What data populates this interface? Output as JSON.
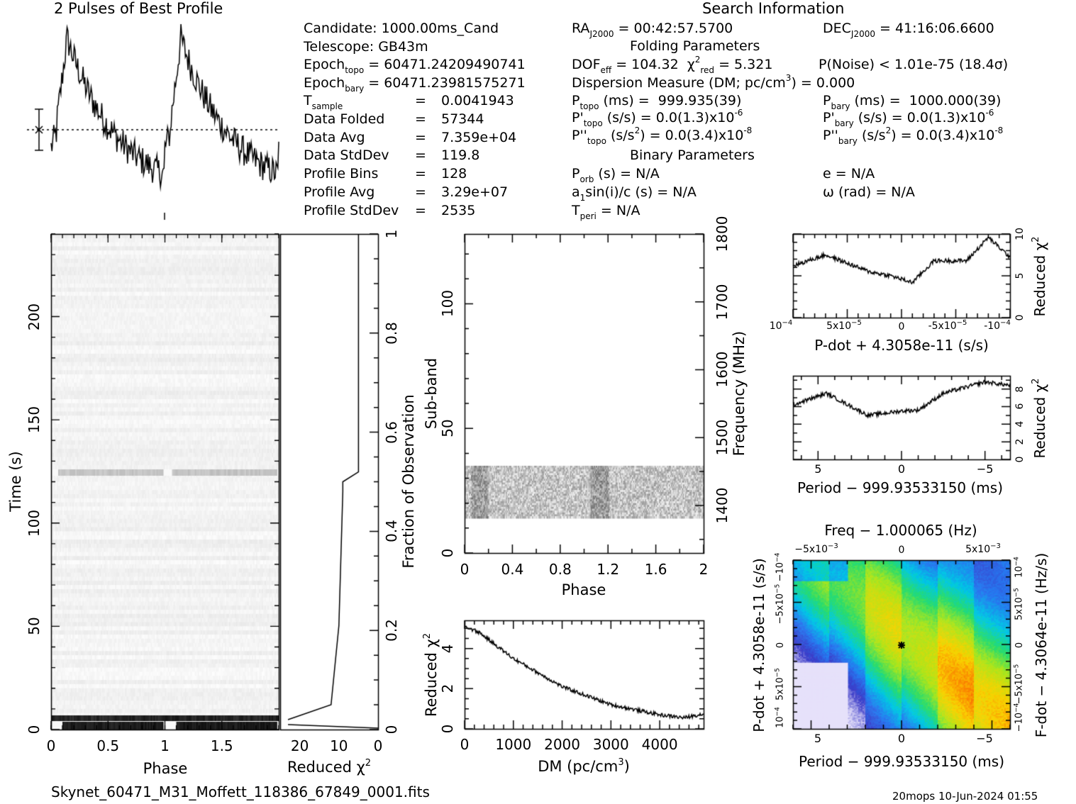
{
  "header": {
    "profile_title": "2 Pulses of Best Profile",
    "search_title": "Search Information",
    "footer_file": "Skynet_60471_M31_Moffett_118386_67849_0001.fits",
    "footer_stamp": "20mops 10-Jun-2024 01:55"
  },
  "candidate_info": {
    "candidate": "Candidate:  1000.00ms_Cand",
    "telescope": "Telescope:  GB43m",
    "epoch_topo": "60471.24209490741",
    "epoch_bary": "60471.23981575271",
    "t_sample": "0.0041943",
    "data_folded": "57344",
    "data_avg": "7.359e+04",
    "data_stddev": "119.8",
    "profile_bins": "128",
    "profile_avg": "3.29e+07",
    "profile_stddev": "2535"
  },
  "search_info": {
    "ra": "00:42:57.5700",
    "dec": "41:16:06.6600",
    "folding_title": "Folding Parameters",
    "dof_eff": "104.32",
    "chi2_red": "5.321",
    "p_noise": "P(Noise) < 1.01e-75  (18.4σ)",
    "dm": "Dispersion Measure (DM; pc/cm",
    "dm_value": ") = 0.000",
    "p_topo": "999.935(39)",
    "p_bary": "1000.000(39)",
    "pdot_topo": "0.0(1.3)x10",
    "pdot_bary": "0.0(1.3)x10",
    "pddot_topo": "0.0(3.4)x10",
    "pddot_bary": "0.0(3.4)x10",
    "pdot_exp": "-6",
    "pddot_exp": "-8",
    "binary_title": "Binary Parameters",
    "p_orb": "N/A",
    "e": "e = N/A",
    "a1sini": "N/A",
    "omega": "ω (rad) = N/A",
    "t_peri": "N/A"
  },
  "chart_data": [
    {
      "type": "line",
      "name": "profile",
      "title": "2 Pulses of Best Profile",
      "x_range": [
        0,
        2
      ],
      "profile_peaks": [
        {
          "phase": 0.12,
          "level": 0.95
        },
        {
          "phase": 1.12,
          "level": 0.95
        }
      ],
      "errorbar": true,
      "avg_line": "dashed"
    },
    {
      "type": "heatmap",
      "name": "time-phase",
      "xlabel": "Phase",
      "ylabel": "Time (s)",
      "xlim": [
        0,
        2
      ],
      "ylim": [
        0,
        240
      ],
      "x_ticks": [
        "0",
        "0.5",
        "1",
        "1.5"
      ],
      "y_ticks": [
        "0",
        "50",
        "100",
        "150",
        "200"
      ],
      "bright_rows_time_s": [
        2,
        123
      ],
      "colormap": "grayscale"
    },
    {
      "type": "line",
      "name": "time-reduced-chi2",
      "xlabel": "Reduced χ",
      "ylabel": "Fraction of Observation",
      "xlim": [
        20,
        0
      ],
      "ylim": [
        0,
        1
      ],
      "x_ticks": [
        "20",
        "10",
        "0"
      ],
      "y_ticks": [
        "0",
        "0.2",
        "0.4",
        "0.6",
        "0.8",
        "1"
      ],
      "points": [
        [
          23,
          0.02
        ],
        [
          12,
          0.05
        ],
        [
          10,
          0.21
        ],
        [
          9,
          0.48
        ],
        [
          9,
          0.5
        ],
        [
          5,
          0.52
        ],
        [
          5,
          1.0
        ]
      ]
    },
    {
      "type": "heatmap",
      "name": "subband-phase",
      "xlabel": "Phase",
      "ylabel": "Sub-band",
      "y2label": "Frequency (MHz)",
      "xlim": [
        0,
        2
      ],
      "ylim": [
        0,
        128
      ],
      "x_ticks": [
        "0",
        "0.4",
        "0.8",
        "1.2",
        "1.6",
        "2"
      ],
      "y_ticks": [
        "0",
        "50",
        "100"
      ],
      "y2_ticks": [
        "1400",
        "1500",
        "1600",
        "1700",
        "1800"
      ],
      "data_band": [
        14,
        35
      ]
    },
    {
      "type": "line",
      "name": "dm-chi2",
      "xlabel": "DM (pc/cm",
      "ylabel": "Reduced χ",
      "xlim": [
        0,
        4900
      ],
      "ylim": [
        0,
        5.4
      ],
      "x_ticks": [
        "0",
        "1000",
        "2000",
        "3000",
        "4000"
      ],
      "y_ticks": [
        "0",
        "2",
        "4"
      ],
      "points": [
        [
          0,
          5.1
        ],
        [
          300,
          4.8
        ],
        [
          1000,
          3.5
        ],
        [
          2000,
          2.1
        ],
        [
          3000,
          1.2
        ],
        [
          4000,
          0.7
        ],
        [
          4500,
          0.55
        ],
        [
          4900,
          0.75
        ]
      ]
    },
    {
      "type": "line",
      "name": "pdot-chi2",
      "xlabel": "P-dot + 4.3058e-11 (s/s)",
      "ylabel": "Reduced χ",
      "xlim": [
        0.0001,
        -0.0001
      ],
      "ylim": [
        0,
        10
      ],
      "x_ticks": [
        "10",
        "5x10",
        "0",
        "-5x10",
        "-10"
      ],
      "y_ticks": [
        "0",
        "5",
        "10"
      ],
      "points": [
        [
          0.0001,
          6.2
        ],
        [
          7e-05,
          7.5
        ],
        [
          3e-05,
          5.5
        ],
        [
          1e-05,
          5.0
        ],
        [
          -1e-05,
          4.2
        ],
        [
          -3e-05,
          6.8
        ],
        [
          -6e-05,
          6.8
        ],
        [
          -8e-05,
          9.6
        ],
        [
          -0.0001,
          7.2
        ]
      ]
    },
    {
      "type": "line",
      "name": "period-chi2",
      "xlabel": "Period − 999.93533150 (ms)",
      "ylabel": "Reduced χ",
      "xlim": [
        6.5,
        -6.5
      ],
      "ylim": [
        0,
        9.5
      ],
      "x_ticks": [
        "5",
        "0",
        "−5"
      ],
      "y_ticks": [
        "0",
        "2",
        "4",
        "6",
        "8"
      ],
      "points": [
        [
          6.5,
          6.2
        ],
        [
          4.5,
          7.5
        ],
        [
          2,
          5.0
        ],
        [
          0,
          5.5
        ],
        [
          -1,
          5.6
        ],
        [
          -2.5,
          7.5
        ],
        [
          -5,
          8.8
        ],
        [
          -6.5,
          8.4
        ]
      ]
    },
    {
      "type": "heatmap",
      "name": "p-pdot",
      "title": "Freq − 1.000065 (Hz)",
      "xlabel": "Period − 999.93533150 (ms)",
      "ylabel": "P-dot + 4.3058e-11 (s/s)",
      "y2label": "F-dot − 4.3064e-11 (Hz/s)",
      "x_ticks": [
        "5",
        "0",
        "−5"
      ],
      "top_ticks": [
        "−5x10",
        "0",
        "5x10"
      ],
      "colormap": "rainbow",
      "best_marker": [
        0,
        0
      ]
    }
  ]
}
